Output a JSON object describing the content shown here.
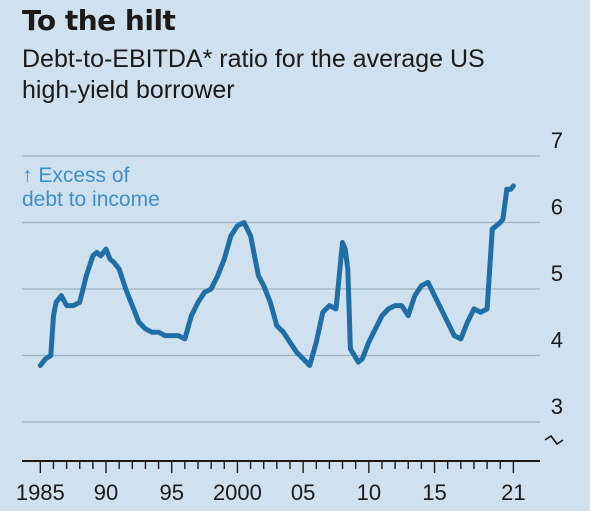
{
  "title": "To the hilt",
  "subtitle": "Debt-to-EBITDA* ratio for the average US high-yield borrower",
  "annotation": {
    "arrow": "↑",
    "line1": "Excess of",
    "line2": "debt to income"
  },
  "colors": {
    "background": "#cfe1ee",
    "line": "#1f6ea5",
    "grid": "#9fb3c2",
    "axis": "#1a1a1a",
    "annotation": "#3f8fc2"
  },
  "chart_data": {
    "type": "line",
    "title": "To the hilt",
    "subtitle": "Debt-to-EBITDA* ratio for the average US high-yield borrower",
    "xlabel": "",
    "ylabel": "",
    "ylim": [
      2.7,
      7
    ],
    "xlim": [
      1984.9,
      2021.2
    ],
    "y_axis_break": true,
    "y_ticks": [
      3,
      4,
      5,
      6,
      7
    ],
    "y_tick_labels": [
      "3",
      "4",
      "5",
      "6",
      "7"
    ],
    "x_ticks": [
      1985,
      1990,
      1995,
      2000,
      2005,
      2010,
      2015,
      2021
    ],
    "x_tick_labels": [
      "1985",
      "90",
      "95",
      "2000",
      "05",
      "10",
      "15",
      "21"
    ],
    "grid": true,
    "series": [
      {
        "name": "",
        "x": [
          1985.0,
          1985.4,
          1985.8,
          1986.0,
          1986.2,
          1986.6,
          1987.0,
          1987.5,
          1988.0,
          1988.5,
          1989.0,
          1989.3,
          1989.6,
          1990.0,
          1990.3,
          1990.6,
          1991.0,
          1991.5,
          1992.0,
          1992.5,
          1993.0,
          1993.5,
          1994.0,
          1994.5,
          1995.0,
          1995.5,
          1996.0,
          1996.5,
          1997.0,
          1997.5,
          1998.0,
          1998.5,
          1999.0,
          1999.5,
          2000.0,
          2000.5,
          2001.0,
          2001.3,
          2001.6,
          2002.0,
          2002.5,
          2003.0,
          2003.5,
          2004.0,
          2004.5,
          2005.0,
          2005.5,
          2006.0,
          2006.5,
          2007.0,
          2007.5,
          2008.0,
          2008.2,
          2008.4,
          2008.6,
          2008.9,
          2009.2,
          2009.5,
          2010.0,
          2010.5,
          2011.0,
          2011.5,
          2012.0,
          2012.5,
          2013.0,
          2013.5,
          2014.0,
          2014.5,
          2015.0,
          2015.5,
          2016.0,
          2016.5,
          2017.0,
          2017.5,
          2018.0,
          2018.5,
          2019.0,
          2019.4,
          2019.7,
          2020.0,
          2020.2,
          2020.5,
          2020.8,
          2021.0
        ],
        "y": [
          3.85,
          3.95,
          4.0,
          4.6,
          4.8,
          4.9,
          4.75,
          4.75,
          4.8,
          5.2,
          5.5,
          5.55,
          5.5,
          5.6,
          5.45,
          5.4,
          5.3,
          5.0,
          4.75,
          4.5,
          4.4,
          4.35,
          4.35,
          4.3,
          4.3,
          4.3,
          4.25,
          4.6,
          4.8,
          4.95,
          5.0,
          5.2,
          5.45,
          5.8,
          5.95,
          6.0,
          5.8,
          5.5,
          5.2,
          5.05,
          4.8,
          4.45,
          4.35,
          4.2,
          4.05,
          3.95,
          3.85,
          4.2,
          4.65,
          4.75,
          4.7,
          5.7,
          5.6,
          5.3,
          4.1,
          4.0,
          3.9,
          3.95,
          4.2,
          4.4,
          4.6,
          4.7,
          4.75,
          4.75,
          4.6,
          4.9,
          5.05,
          5.1,
          4.9,
          4.7,
          4.5,
          4.3,
          4.25,
          4.5,
          4.7,
          4.65,
          4.7,
          5.9,
          5.95,
          6.0,
          6.05,
          6.5,
          6.5,
          6.55
        ]
      }
    ]
  }
}
